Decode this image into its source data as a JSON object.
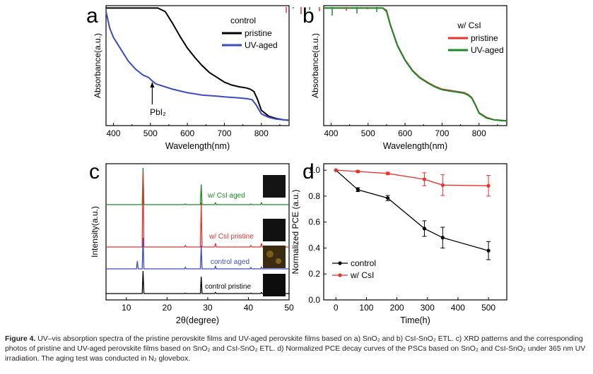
{
  "figure": {
    "caption_label": "Figure 4.",
    "caption_text": "UV–vis absorption spectra of the pristine perovskite films and UV-aged perovskite films based on a) SnO₂ and b) CsI-SnO₂ ETL. c) XRD patterns and the corresponding photos of pristine and UV-aged perovskite films based on SnO₂ and CsI-SnO₂ ETL. d) Normalized PCE decay curves of the PSCs based on SnO₂ and CsI-SnO₂ under 365 nm UV irradiation. The aging test was conducted in N₂ glovebox."
  },
  "chart_data": [
    {
      "panel": "a",
      "type": "line",
      "legend_title": "control",
      "legend_position": "top-right",
      "xlabel": "Wavelength(nm)",
      "ylabel": "Absorbance(a.u.)",
      "xlim": [
        380,
        875
      ],
      "ylim": [
        0,
        1
      ],
      "xticks": [
        400,
        500,
        600,
        700,
        800
      ],
      "annotation": "PbI₂",
      "annotation_x": 505,
      "series": [
        {
          "name": "pristine",
          "color": "#000000",
          "x": [
            380,
            400,
            420,
            440,
            460,
            480,
            500,
            520,
            540,
            560,
            580,
            600,
            620,
            640,
            660,
            680,
            700,
            720,
            740,
            760,
            770,
            780,
            790,
            800,
            820,
            840,
            860,
            875
          ],
          "y": [
            1.0,
            1.0,
            1.0,
            1.0,
            1.0,
            1.0,
            1.0,
            1.0,
            0.97,
            0.87,
            0.76,
            0.66,
            0.58,
            0.51,
            0.45,
            0.41,
            0.37,
            0.345,
            0.33,
            0.32,
            0.31,
            0.29,
            0.22,
            0.13,
            0.08,
            0.06,
            0.05,
            0.045
          ]
        },
        {
          "name": "UV-aged",
          "color": "#3b4cc0",
          "x": [
            380,
            385,
            390,
            400,
            420,
            440,
            460,
            480,
            495,
            505,
            515,
            540,
            560,
            580,
            600,
            620,
            640,
            660,
            680,
            700,
            720,
            740,
            760,
            775,
            785,
            800,
            820,
            840,
            860,
            875
          ],
          "y": [
            0.97,
            0.9,
            0.83,
            0.75,
            0.65,
            0.55,
            0.48,
            0.43,
            0.41,
            0.38,
            0.355,
            0.33,
            0.31,
            0.295,
            0.28,
            0.27,
            0.26,
            0.255,
            0.25,
            0.245,
            0.24,
            0.235,
            0.23,
            0.22,
            0.18,
            0.1,
            0.07,
            0.055,
            0.05,
            0.045
          ]
        }
      ]
    },
    {
      "panel": "b",
      "type": "line",
      "legend_title": "w/ CsI",
      "legend_position": "top-right",
      "xlabel": "Wavelength(nm)",
      "ylabel": "Absorbance(a.u.)",
      "xlim": [
        380,
        875
      ],
      "ylim": [
        0,
        1
      ],
      "xticks": [
        400,
        500,
        600,
        700,
        800
      ],
      "series": [
        {
          "name": "pristine",
          "color": "#e8322e",
          "x": [
            380,
            400,
            420,
            440,
            460,
            480,
            500,
            520,
            540,
            550,
            560,
            580,
            600,
            620,
            640,
            660,
            680,
            700,
            720,
            740,
            760,
            770,
            780,
            790,
            800,
            820,
            840,
            860,
            875
          ],
          "y": [
            1.0,
            1.0,
            1.0,
            1.0,
            1.0,
            1.0,
            1.0,
            1.0,
            1.0,
            0.98,
            0.86,
            0.68,
            0.56,
            0.47,
            0.41,
            0.37,
            0.335,
            0.31,
            0.3,
            0.29,
            0.28,
            0.265,
            0.24,
            0.18,
            0.11,
            0.07,
            0.05,
            0.045,
            0.04
          ]
        },
        {
          "name": "UV-aged",
          "color": "#1a8a2a",
          "x": [
            380,
            400,
            420,
            440,
            460,
            480,
            500,
            520,
            540,
            550,
            560,
            580,
            600,
            620,
            640,
            660,
            680,
            700,
            720,
            740,
            760,
            770,
            780,
            790,
            800,
            820,
            840,
            860,
            875
          ],
          "y": [
            1.0,
            1.0,
            1.0,
            1.0,
            1.0,
            1.0,
            1.0,
            1.0,
            1.0,
            0.97,
            0.855,
            0.675,
            0.555,
            0.465,
            0.405,
            0.365,
            0.33,
            0.305,
            0.295,
            0.285,
            0.275,
            0.26,
            0.235,
            0.175,
            0.105,
            0.065,
            0.05,
            0.042,
            0.04
          ]
        }
      ]
    },
    {
      "panel": "c",
      "type": "line",
      "xlabel": "2θ(degree)",
      "ylabel": "Intensity(a.u.)",
      "xlim": [
        5,
        50
      ],
      "xticks": [
        10,
        20,
        30,
        40,
        50
      ],
      "peaks_2theta": [
        12.7,
        14.1,
        24.5,
        28.4,
        31.9,
        40.6,
        43.2
      ],
      "series": [
        {
          "name": "w/ CsI aged",
          "color": "#1a8a2a",
          "peak_heights": [
            0,
            1.0,
            0.02,
            0.55,
            0.05,
            0.02,
            0.05
          ]
        },
        {
          "name": "w/ CsI pristine",
          "color": "#e8322e",
          "peak_heights": [
            0,
            1.0,
            0.02,
            0.6,
            0.05,
            0.02,
            0.05
          ]
        },
        {
          "name": "control aged",
          "color": "#3b4cc0",
          "peak_heights": [
            0.25,
            1.0,
            0.05,
            0.75,
            0.08,
            0.04,
            0.06
          ]
        },
        {
          "name": "control pristine",
          "color": "#000000",
          "peak_heights": [
            0,
            1.0,
            0.02,
            0.75,
            0.05,
            0.02,
            0.05
          ]
        }
      ]
    },
    {
      "panel": "d",
      "type": "line",
      "xlabel": "Time(h)",
      "ylabel": "Normalized PCE (a.u.)",
      "xlim": [
        -40,
        560
      ],
      "ylim": [
        0,
        1.05
      ],
      "xticks": [
        0,
        100,
        200,
        300,
        400,
        500
      ],
      "yticks": [
        "0.0",
        "0.2",
        "0.4",
        "0.6",
        "0.8",
        "1.0"
      ],
      "legend_position": "bottom-left",
      "series": [
        {
          "name": "control",
          "color": "#000000",
          "x": [
            0,
            72,
            170,
            290,
            350,
            500
          ],
          "y": [
            1.0,
            0.85,
            0.785,
            0.55,
            0.48,
            0.38
          ],
          "err": [
            0.0,
            0.015,
            0.02,
            0.06,
            0.08,
            0.07
          ]
        },
        {
          "name": "w/ CsI",
          "color": "#e8322e",
          "x": [
            0,
            72,
            170,
            290,
            350,
            500
          ],
          "y": [
            1.0,
            0.99,
            0.975,
            0.93,
            0.885,
            0.88
          ],
          "err": [
            0.0,
            0.008,
            0.01,
            0.05,
            0.08,
            0.08
          ]
        }
      ]
    }
  ]
}
